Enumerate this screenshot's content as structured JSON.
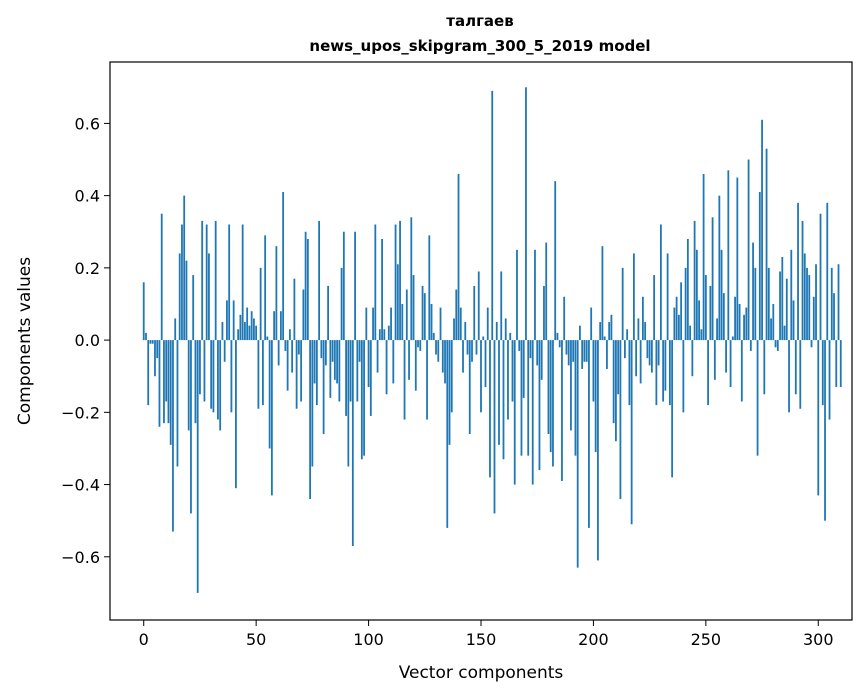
{
  "chart_data": {
    "type": "bar",
    "title_line1": "талгаев",
    "title_line2": "news_upos_skipgram_300_5_2019 model",
    "xlabel": "Vector components",
    "ylabel": "Components values",
    "xlim": [
      -15,
      315
    ],
    "ylim": [
      -0.775,
      0.77
    ],
    "xticks": [
      0,
      50,
      100,
      150,
      200,
      250,
      300
    ],
    "xtick_labels": [
      "0",
      "50",
      "100",
      "150",
      "200",
      "250",
      "300"
    ],
    "yticks": [
      -0.6,
      -0.4,
      -0.2,
      0.0,
      0.2,
      0.4,
      0.6
    ],
    "ytick_labels": [
      "−0.6",
      "−0.4",
      "−0.2",
      "0.0",
      "0.2",
      "0.4",
      "0.6"
    ],
    "bar_color": "#1f77b4",
    "grid": false,
    "values": [
      0.16,
      0.02,
      -0.18,
      -0.01,
      -0.01,
      -0.1,
      -0.05,
      -0.24,
      0.35,
      -0.23,
      -0.17,
      -0.23,
      -0.29,
      -0.53,
      0.06,
      -0.35,
      0.24,
      0.32,
      0.4,
      0.22,
      -0.25,
      -0.48,
      0.18,
      -0.23,
      -0.7,
      -0.15,
      0.33,
      -0.17,
      0.32,
      0.24,
      -0.19,
      -0.2,
      0.33,
      -0.22,
      -0.25,
      0.05,
      -0.06,
      0.11,
      0.32,
      -0.2,
      0.11,
      -0.41,
      0.03,
      0.07,
      0.32,
      0.05,
      0.09,
      0.04,
      0.08,
      0.06,
      0.04,
      -0.19,
      0.2,
      -0.18,
      0.29,
      0.01,
      -0.3,
      -0.43,
      0.08,
      0.26,
      -0.07,
      0.08,
      0.41,
      -0.03,
      -0.14,
      0.03,
      -0.09,
      0.17,
      -0.19,
      -0.04,
      -0.17,
      0.14,
      0.3,
      0.28,
      -0.44,
      -0.35,
      -0.12,
      -0.18,
      0.33,
      -0.05,
      -0.26,
      -0.07,
      0.15,
      -0.16,
      -0.06,
      -0.11,
      -0.12,
      -0.17,
      0.2,
      0.3,
      -0.21,
      -0.35,
      -0.17,
      -0.57,
      0.3,
      -0.17,
      -0.06,
      -0.33,
      -0.32,
      0.09,
      -0.13,
      -0.21,
      0.09,
      0.32,
      -0.09,
      0.03,
      0.28,
      0.03,
      -0.15,
      0.04,
      0.09,
      -0.12,
      0.32,
      0.21,
      0.33,
      0.1,
      -0.22,
      0.14,
      -0.11,
      0.34,
      0.18,
      -0.14,
      -0.02,
      -0.03,
      0.15,
      0.13,
      -0.22,
      0.29,
      0.1,
      0.02,
      -0.04,
      -0.06,
      0.09,
      -0.09,
      -0.12,
      -0.52,
      -0.29,
      -0.2,
      0.06,
      0.14,
      0.46,
      0.09,
      -0.09,
      0.05,
      -0.04,
      -0.26,
      -0.06,
      0.15,
      -0.04,
      0.19,
      -0.2,
      0.01,
      -0.13,
      0.09,
      -0.38,
      0.69,
      -0.48,
      0.05,
      -0.29,
      0.19,
      -0.33,
      0.06,
      -0.22,
      0.02,
      -0.17,
      -0.4,
      0.25,
      -0.03,
      -0.32,
      -0.16,
      0.7,
      -0.32,
      -0.05,
      -0.4,
      0.25,
      -0.07,
      -0.36,
      -0.11,
      0.15,
      0.27,
      -0.26,
      -0.31,
      -0.35,
      0.44,
      0.02,
      -0.02,
      -0.39,
      0.12,
      -0.04,
      -0.07,
      -0.25,
      -0.06,
      -0.32,
      -0.63,
      0.04,
      -0.08,
      -0.06,
      -0.06,
      -0.52,
      0.09,
      -0.17,
      -0.31,
      -0.61,
      0.05,
      0.26,
      0.01,
      -0.08,
      0.05,
      0.07,
      -0.23,
      -0.28,
      -0.15,
      -0.44,
      0.2,
      -0.05,
      0.03,
      -0.18,
      -0.51,
      0.24,
      -0.1,
      0.06,
      -0.12,
      0.12,
      0.05,
      -0.05,
      -0.07,
      -0.09,
      0.18,
      -0.18,
      -0.07,
      0.32,
      -0.17,
      -0.14,
      0.24,
      -0.18,
      -0.38,
      0.09,
      0.12,
      0.07,
      0.16,
      -0.2,
      0.2,
      0.28,
      0.04,
      -0.1,
      0.33,
      0.25,
      0.11,
      0.03,
      0.46,
      0.18,
      -0.18,
      0.15,
      0.34,
      -0.11,
      0.06,
      0.4,
      0.25,
      0.13,
      -0.09,
      0.47,
      -0.13,
      0.01,
      0.12,
      0.45,
      0.1,
      -0.17,
      0.07,
      0.09,
      0.5,
      -0.03,
      0.27,
      0.2,
      -0.32,
      0.41,
      0.61,
      -0.15,
      0.53,
      0.2,
      0.06,
      0.1,
      -0.02,
      -0.03,
      0.19,
      0.23,
      0.04,
      0.17,
      -0.2,
      0.25,
      0.11,
      -0.15,
      0.38,
      -0.19,
      0.33,
      0.24,
      0.2,
      0.18,
      -0.02,
      0.12,
      0.21,
      -0.43,
      0.35,
      -0.18,
      -0.5,
      0.38,
      -0.22,
      0.2,
      0.13,
      -0.13,
      0.21,
      -0.13
    ]
  }
}
